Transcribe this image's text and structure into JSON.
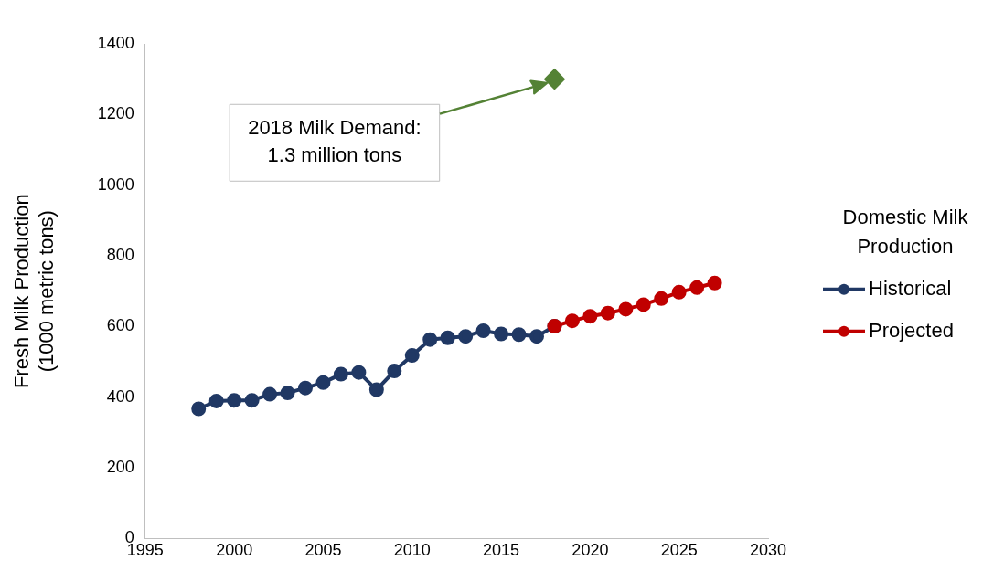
{
  "chart_data": {
    "type": "line",
    "ylabel": "Fresh Milk Production (1000 metric tons)",
    "legend_title": "Domestic Milk Production",
    "legend": "right",
    "grid": false,
    "xlim": [
      1995,
      2030
    ],
    "xticks": [
      1995,
      2000,
      2005,
      2010,
      2015,
      2020,
      2025,
      2030
    ],
    "ylim": [
      0,
      1400
    ],
    "yticks": [
      0,
      200,
      400,
      600,
      800,
      1000,
      1200,
      1400
    ],
    "series": [
      {
        "name": "Historical",
        "color": "#203864",
        "marker": "circle",
        "x": [
          1998,
          1999,
          2000,
          2001,
          2002,
          2003,
          2004,
          2005,
          2006,
          2007,
          2008,
          2009,
          2010,
          2011,
          2012,
          2013,
          2014,
          2015,
          2016,
          2017,
          2018
        ],
        "values": [
          367,
          389,
          391,
          391,
          408,
          412,
          426,
          441,
          465,
          470,
          421,
          474,
          518,
          563,
          568,
          572,
          588,
          579,
          577,
          572,
          601
        ]
      },
      {
        "name": "Projected",
        "color": "#c00000",
        "marker": "circle",
        "x": [
          2018,
          2019,
          2020,
          2021,
          2022,
          2023,
          2024,
          2025,
          2026,
          2027
        ],
        "values": [
          601,
          616,
          629,
          638,
          649,
          662,
          679,
          697,
          710,
          723
        ]
      },
      {
        "type": "scatter",
        "color": "#548235",
        "marker": "diamond",
        "x": [
          2018
        ],
        "values": [
          1300
        ]
      }
    ],
    "annotations": [
      "2018 Milk Demand: 1.3 million tons"
    ]
  }
}
